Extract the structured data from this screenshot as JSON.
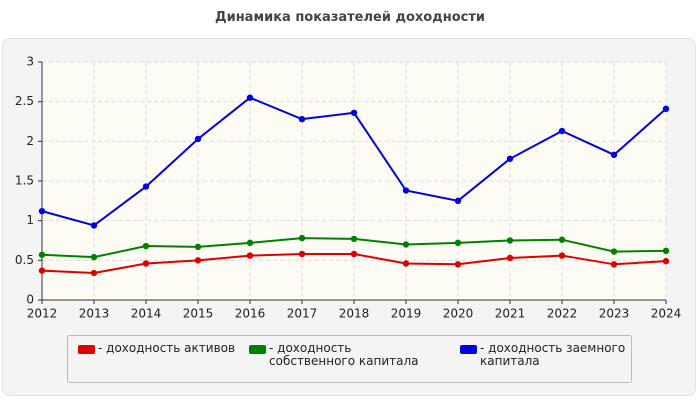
{
  "chart_data": {
    "type": "line",
    "title": "Динамика показателей доходности",
    "x": [
      2012,
      2013,
      2014,
      2015,
      2016,
      2017,
      2018,
      2019,
      2020,
      2021,
      2022,
      2023,
      2024
    ],
    "xlim": [
      2012,
      2024
    ],
    "xticks": [
      2012,
      2013,
      2014,
      2015,
      2016,
      2017,
      2018,
      2019,
      2020,
      2021,
      2022,
      2023,
      2024
    ],
    "ylim": [
      0,
      3
    ],
    "yticks": [
      0,
      0.5,
      1,
      1.5,
      2,
      2.5,
      3
    ],
    "grid": true,
    "series": [
      {
        "name": "- доходность активов",
        "color": "#e00000",
        "values": [
          0.37,
          0.34,
          0.46,
          0.5,
          0.56,
          0.58,
          0.58,
          0.46,
          0.45,
          0.53,
          0.56,
          0.45,
          0.49
        ]
      },
      {
        "name": "- доходность собственного капитала",
        "color": "#008000",
        "values": [
          0.57,
          0.54,
          0.68,
          0.67,
          0.72,
          0.78,
          0.77,
          0.7,
          0.72,
          0.75,
          0.76,
          0.61,
          0.62
        ]
      },
      {
        "name": "- доходность заемного капитала",
        "color": "#0000e0",
        "values": [
          1.12,
          0.94,
          1.43,
          2.03,
          2.55,
          2.28,
          2.36,
          1.38,
          1.25,
          1.78,
          2.13,
          1.83,
          2.41
        ]
      }
    ]
  }
}
